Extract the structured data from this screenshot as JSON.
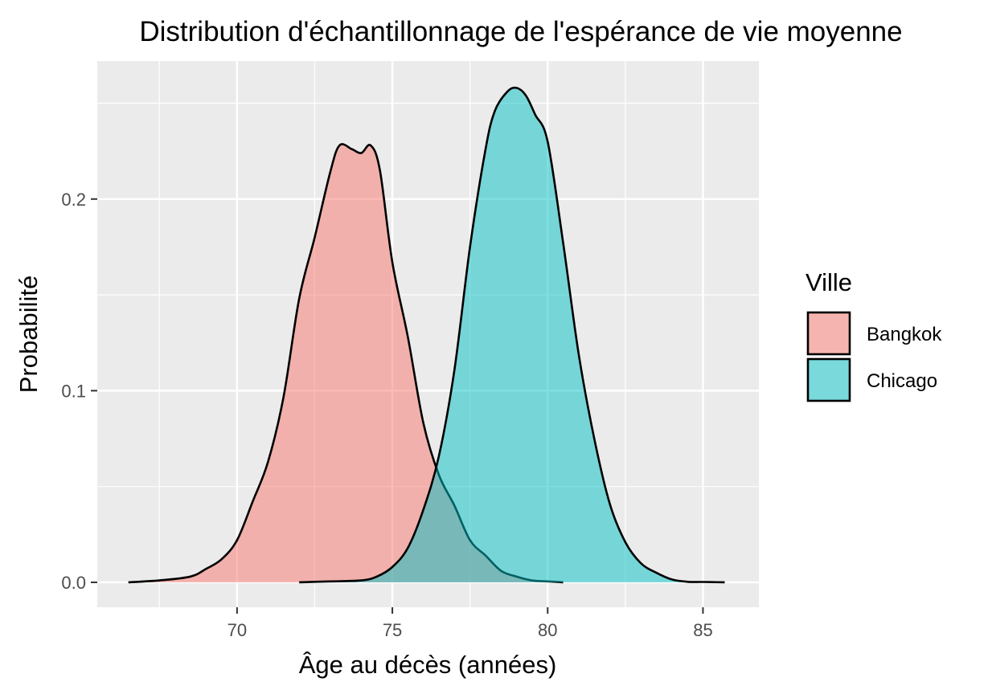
{
  "chart_data": {
    "type": "area",
    "title": "Distribution d'échantillonnage de l'espérance de vie moyenne",
    "xlabel": "Âge au décès (années)",
    "ylabel": "Probabilité",
    "xlim": [
      65.5,
      86.8
    ],
    "ylim": [
      -0.013,
      0.272
    ],
    "x_ticks": [
      70,
      75,
      80,
      85
    ],
    "x_tick_labels": [
      "70",
      "75",
      "80",
      "85"
    ],
    "y_ticks": [
      0.0,
      0.1,
      0.2
    ],
    "y_tick_labels": [
      "0.0",
      "0.1",
      "0.2"
    ],
    "grid": true,
    "legend": {
      "title": "Ville",
      "placement": "right",
      "entries": [
        "Bangkok",
        "Chicago"
      ]
    },
    "series": [
      {
        "name": "Bangkok",
        "color": "#F8766D",
        "x": [
          66.5,
          67.5,
          68.5,
          69.0,
          69.5,
          70.0,
          70.5,
          71.0,
          71.5,
          72.0,
          72.5,
          73.0,
          73.3,
          73.7,
          74.0,
          74.3,
          74.6,
          75.0,
          75.5,
          76.0,
          76.5,
          77.0,
          77.5,
          78.0,
          78.5,
          79.0,
          79.5,
          80.0,
          80.5
        ],
        "values": [
          0.0,
          0.001,
          0.003,
          0.007,
          0.012,
          0.022,
          0.042,
          0.063,
          0.097,
          0.148,
          0.18,
          0.214,
          0.228,
          0.226,
          0.224,
          0.228,
          0.215,
          0.167,
          0.128,
          0.083,
          0.056,
          0.04,
          0.022,
          0.014,
          0.006,
          0.003,
          0.001,
          0.0005,
          0.0
        ]
      },
      {
        "name": "Chicago",
        "color": "#00BFC4",
        "x": [
          72.0,
          73.0,
          74.0,
          74.5,
          75.0,
          75.5,
          76.0,
          76.5,
          77.0,
          77.5,
          78.0,
          78.3,
          78.7,
          79.0,
          79.3,
          79.6,
          80.0,
          80.5,
          81.0,
          81.5,
          82.0,
          82.5,
          83.0,
          83.5,
          84.0,
          84.5,
          85.0,
          85.7
        ],
        "values": [
          0.0,
          0.0005,
          0.001,
          0.003,
          0.008,
          0.018,
          0.038,
          0.066,
          0.111,
          0.175,
          0.226,
          0.246,
          0.256,
          0.258,
          0.254,
          0.244,
          0.23,
          0.177,
          0.119,
          0.075,
          0.041,
          0.021,
          0.01,
          0.005,
          0.0015,
          0.0003,
          0.0002,
          0.0
        ]
      }
    ]
  }
}
